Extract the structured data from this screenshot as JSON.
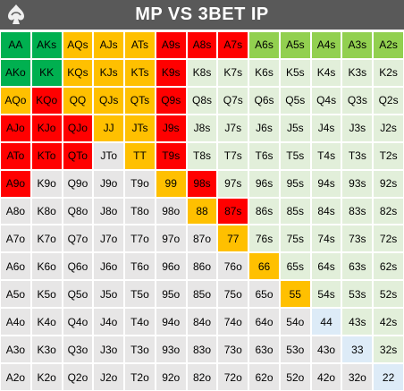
{
  "title": "MP VS 3BET IP",
  "logo_icon": "spade-swirl-logo",
  "colors": {
    "R": "#ff0000",
    "O": "#ffc000",
    "G": "#00b050",
    "LG": "#92d050",
    "PG": "#e2efda",
    "BL": "#ddebf7",
    "GR": "#e7e6e6",
    "header": "#595959"
  },
  "grid": [
    [
      [
        "AA",
        "G"
      ],
      [
        "AKs",
        "G"
      ],
      [
        "AQs",
        "O"
      ],
      [
        "AJs",
        "O"
      ],
      [
        "ATs",
        "O"
      ],
      [
        "A9s",
        "R"
      ],
      [
        "A8s",
        "R"
      ],
      [
        "A7s",
        "R"
      ],
      [
        "A6s",
        "LG"
      ],
      [
        "A5s",
        "LG"
      ],
      [
        "A4s",
        "LG"
      ],
      [
        "A3s",
        "LG"
      ],
      [
        "A2s",
        "LG"
      ]
    ],
    [
      [
        "AKo",
        "G"
      ],
      [
        "KK",
        "G"
      ],
      [
        "KQs",
        "O"
      ],
      [
        "KJs",
        "O"
      ],
      [
        "KTs",
        "O"
      ],
      [
        "K9s",
        "R"
      ],
      [
        "K8s",
        "PG"
      ],
      [
        "K7s",
        "PG"
      ],
      [
        "K6s",
        "PG"
      ],
      [
        "K5s",
        "PG"
      ],
      [
        "K4s",
        "PG"
      ],
      [
        "K3s",
        "PG"
      ],
      [
        "K2s",
        "PG"
      ]
    ],
    [
      [
        "AQo",
        "O"
      ],
      [
        "KQo",
        "R"
      ],
      [
        "QQ",
        "O"
      ],
      [
        "QJs",
        "O"
      ],
      [
        "QTs",
        "O"
      ],
      [
        "Q9s",
        "R"
      ],
      [
        "Q8s",
        "PG"
      ],
      [
        "Q7s",
        "PG"
      ],
      [
        "Q6s",
        "PG"
      ],
      [
        "Q5s",
        "PG"
      ],
      [
        "Q4s",
        "PG"
      ],
      [
        "Q3s",
        "PG"
      ],
      [
        "Q2s",
        "PG"
      ]
    ],
    [
      [
        "AJo",
        "R"
      ],
      [
        "KJo",
        "R"
      ],
      [
        "QJo",
        "R"
      ],
      [
        "JJ",
        "O"
      ],
      [
        "JTs",
        "O"
      ],
      [
        "J9s",
        "R"
      ],
      [
        "J8s",
        "PG"
      ],
      [
        "J7s",
        "PG"
      ],
      [
        "J6s",
        "PG"
      ],
      [
        "J5s",
        "PG"
      ],
      [
        "J4s",
        "PG"
      ],
      [
        "J3s",
        "PG"
      ],
      [
        "J2s",
        "PG"
      ]
    ],
    [
      [
        "ATo",
        "R"
      ],
      [
        "KTo",
        "R"
      ],
      [
        "QTo",
        "R"
      ],
      [
        "JTo",
        "GR"
      ],
      [
        "TT",
        "O"
      ],
      [
        "T9s",
        "R"
      ],
      [
        "T8s",
        "PG"
      ],
      [
        "T7s",
        "PG"
      ],
      [
        "T6s",
        "PG"
      ],
      [
        "T5s",
        "PG"
      ],
      [
        "T4s",
        "PG"
      ],
      [
        "T3s",
        "PG"
      ],
      [
        "T2s",
        "PG"
      ]
    ],
    [
      [
        "A9o",
        "R"
      ],
      [
        "K9o",
        "GR"
      ],
      [
        "Q9o",
        "GR"
      ],
      [
        "J9o",
        "GR"
      ],
      [
        "T9o",
        "GR"
      ],
      [
        "99",
        "O"
      ],
      [
        "98s",
        "R"
      ],
      [
        "97s",
        "PG"
      ],
      [
        "96s",
        "PG"
      ],
      [
        "95s",
        "PG"
      ],
      [
        "94s",
        "PG"
      ],
      [
        "93s",
        "PG"
      ],
      [
        "92s",
        "PG"
      ]
    ],
    [
      [
        "A8o",
        "GR"
      ],
      [
        "K8o",
        "GR"
      ],
      [
        "Q8o",
        "GR"
      ],
      [
        "J8o",
        "GR"
      ],
      [
        "T8o",
        "GR"
      ],
      [
        "98o",
        "GR"
      ],
      [
        "88",
        "O"
      ],
      [
        "87s",
        "R"
      ],
      [
        "86s",
        "PG"
      ],
      [
        "85s",
        "PG"
      ],
      [
        "84s",
        "PG"
      ],
      [
        "83s",
        "PG"
      ],
      [
        "82s",
        "PG"
      ]
    ],
    [
      [
        "A7o",
        "GR"
      ],
      [
        "K7o",
        "GR"
      ],
      [
        "Q7o",
        "GR"
      ],
      [
        "J7o",
        "GR"
      ],
      [
        "T7o",
        "GR"
      ],
      [
        "97o",
        "GR"
      ],
      [
        "87o",
        "GR"
      ],
      [
        "77",
        "O"
      ],
      [
        "76s",
        "PG"
      ],
      [
        "75s",
        "PG"
      ],
      [
        "74s",
        "PG"
      ],
      [
        "73s",
        "PG"
      ],
      [
        "72s",
        "PG"
      ]
    ],
    [
      [
        "A6o",
        "GR"
      ],
      [
        "K6o",
        "GR"
      ],
      [
        "Q6o",
        "GR"
      ],
      [
        "J6o",
        "GR"
      ],
      [
        "T6o",
        "GR"
      ],
      [
        "96o",
        "GR"
      ],
      [
        "86o",
        "GR"
      ],
      [
        "76o",
        "GR"
      ],
      [
        "66",
        "O"
      ],
      [
        "65s",
        "PG"
      ],
      [
        "64s",
        "PG"
      ],
      [
        "63s",
        "PG"
      ],
      [
        "62s",
        "PG"
      ]
    ],
    [
      [
        "A5o",
        "GR"
      ],
      [
        "K5o",
        "GR"
      ],
      [
        "Q5o",
        "GR"
      ],
      [
        "J5o",
        "GR"
      ],
      [
        "T5o",
        "GR"
      ],
      [
        "95o",
        "GR"
      ],
      [
        "85o",
        "GR"
      ],
      [
        "75o",
        "GR"
      ],
      [
        "65o",
        "GR"
      ],
      [
        "55",
        "O"
      ],
      [
        "54s",
        "PG"
      ],
      [
        "53s",
        "PG"
      ],
      [
        "52s",
        "PG"
      ]
    ],
    [
      [
        "A4o",
        "GR"
      ],
      [
        "K4o",
        "GR"
      ],
      [
        "Q4o",
        "GR"
      ],
      [
        "J4o",
        "GR"
      ],
      [
        "T4o",
        "GR"
      ],
      [
        "94o",
        "GR"
      ],
      [
        "84o",
        "GR"
      ],
      [
        "74o",
        "GR"
      ],
      [
        "64o",
        "GR"
      ],
      [
        "54o",
        "GR"
      ],
      [
        "44",
        "BL"
      ],
      [
        "43s",
        "PG"
      ],
      [
        "42s",
        "PG"
      ]
    ],
    [
      [
        "A3o",
        "GR"
      ],
      [
        "K3o",
        "GR"
      ],
      [
        "Q3o",
        "GR"
      ],
      [
        "J3o",
        "GR"
      ],
      [
        "T3o",
        "GR"
      ],
      [
        "93o",
        "GR"
      ],
      [
        "83o",
        "GR"
      ],
      [
        "73o",
        "GR"
      ],
      [
        "63o",
        "GR"
      ],
      [
        "53o",
        "GR"
      ],
      [
        "43o",
        "GR"
      ],
      [
        "33",
        "BL"
      ],
      [
        "32s",
        "PG"
      ]
    ],
    [
      [
        "A2o",
        "GR"
      ],
      [
        "K2o",
        "GR"
      ],
      [
        "Q2o",
        "GR"
      ],
      [
        "J2o",
        "GR"
      ],
      [
        "T2o",
        "GR"
      ],
      [
        "92o",
        "GR"
      ],
      [
        "82o",
        "GR"
      ],
      [
        "72o",
        "GR"
      ],
      [
        "62o",
        "GR"
      ],
      [
        "52o",
        "GR"
      ],
      [
        "42o",
        "GR"
      ],
      [
        "32o",
        "GR"
      ],
      [
        "22",
        "BL"
      ]
    ]
  ]
}
